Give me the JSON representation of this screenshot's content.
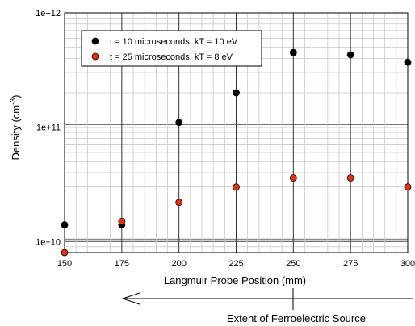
{
  "chart_data": {
    "type": "scatter",
    "xlabel": "Langmuir Probe Position (mm)",
    "ylabel_main": "Density (cm",
    "ylabel_sup": "-3",
    "ylabel_close": ")",
    "xlim": [
      150,
      300
    ],
    "ylim": [
      8000000000.0,
      1000000000000.0
    ],
    "yscale": "log",
    "x_ticks": [
      150,
      175,
      200,
      225,
      250,
      275,
      300
    ],
    "x_tick_labels": [
      "150",
      "175",
      "200",
      "225",
      "250",
      "275",
      "300"
    ],
    "y_tick_labels": [
      "1e+10",
      "1e+11",
      "1e+12"
    ],
    "grid": true,
    "legend_position": "top-left",
    "series": [
      {
        "name": "t = 10 microseconds. kT = 10 eV",
        "color": "#000000",
        "x": [
          150,
          175,
          200,
          225,
          250,
          275,
          300
        ],
        "y": [
          14000000000.0,
          14000000000.0,
          110000000000.0,
          200000000000.0,
          450000000000.0,
          430000000000.0,
          370000000000.0
        ]
      },
      {
        "name": "t = 25 microseconds. kT = 8 eV",
        "color": "#e8300e",
        "x": [
          150,
          175,
          200,
          225,
          250,
          275,
          300
        ],
        "y": [
          8000000000.0,
          15000000000.0,
          22000000000.0,
          30000000000.0,
          36000000000.0,
          36000000000.0,
          30000000000.0
        ]
      }
    ],
    "annotation": "Extent of Ferroelectric Source"
  }
}
